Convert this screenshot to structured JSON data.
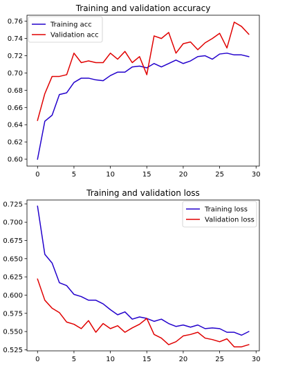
{
  "chart_data": [
    {
      "type": "line",
      "title": "Training and validation accuracy",
      "xlabel": "",
      "ylabel": "",
      "xlim": [
        -1.45,
        30.45
      ],
      "ylim": [
        0.592,
        0.767
      ],
      "xticks": [
        0,
        5,
        10,
        15,
        20,
        25,
        30
      ],
      "yticks": [
        0.6,
        0.62,
        0.64,
        0.66,
        0.68,
        0.7,
        0.72,
        0.74,
        0.76
      ],
      "ytick_decimals": 2,
      "legend_position": "upper-left",
      "grid": false,
      "x": [
        0,
        1,
        2,
        3,
        4,
        5,
        6,
        7,
        8,
        9,
        10,
        11,
        12,
        13,
        14,
        15,
        16,
        17,
        18,
        19,
        20,
        21,
        22,
        23,
        24,
        25,
        26,
        27,
        28,
        29
      ],
      "series": [
        {
          "name": "Training acc",
          "color": "#2200cc",
          "values": [
            0.6,
            0.644,
            0.651,
            0.675,
            0.677,
            0.689,
            0.694,
            0.694,
            0.692,
            0.691,
            0.697,
            0.701,
            0.701,
            0.707,
            0.708,
            0.706,
            0.711,
            0.707,
            0.711,
            0.715,
            0.711,
            0.714,
            0.719,
            0.72,
            0.716,
            0.722,
            0.723,
            0.721,
            0.721,
            0.719
          ]
        },
        {
          "name": "Validation acc",
          "color": "#e00000",
          "values": [
            0.645,
            0.676,
            0.696,
            0.696,
            0.698,
            0.723,
            0.712,
            0.714,
            0.712,
            0.712,
            0.723,
            0.716,
            0.725,
            0.712,
            0.719,
            0.698,
            0.743,
            0.74,
            0.747,
            0.723,
            0.734,
            0.736,
            0.727,
            0.735,
            0.74,
            0.746,
            0.729,
            0.759,
            0.754,
            0.745
          ]
        }
      ]
    },
    {
      "type": "line",
      "title": "Training and validation loss",
      "xlabel": "",
      "ylabel": "",
      "xlim": [
        -1.45,
        30.45
      ],
      "ylim": [
        0.5235,
        0.7305
      ],
      "xticks": [
        0,
        5,
        10,
        15,
        20,
        25,
        30
      ],
      "yticks": [
        0.525,
        0.55,
        0.575,
        0.6,
        0.625,
        0.65,
        0.675,
        0.7,
        0.725
      ],
      "ytick_decimals": 3,
      "legend_position": "upper-right",
      "grid": false,
      "x": [
        0,
        1,
        2,
        3,
        4,
        5,
        6,
        7,
        8,
        9,
        10,
        11,
        12,
        13,
        14,
        15,
        16,
        17,
        18,
        19,
        20,
        21,
        22,
        23,
        24,
        25,
        26,
        27,
        28,
        29
      ],
      "series": [
        {
          "name": "Training loss",
          "color": "#2200cc",
          "values": [
            0.722,
            0.656,
            0.644,
            0.617,
            0.613,
            0.601,
            0.598,
            0.593,
            0.593,
            0.588,
            0.58,
            0.573,
            0.577,
            0.567,
            0.57,
            0.568,
            0.564,
            0.567,
            0.561,
            0.557,
            0.559,
            0.556,
            0.559,
            0.554,
            0.555,
            0.554,
            0.549,
            0.549,
            0.545,
            0.55
          ]
        },
        {
          "name": "Validation loss",
          "color": "#e00000",
          "values": [
            0.622,
            0.593,
            0.582,
            0.576,
            0.563,
            0.56,
            0.554,
            0.565,
            0.549,
            0.561,
            0.554,
            0.558,
            0.549,
            0.555,
            0.56,
            0.568,
            0.546,
            0.541,
            0.532,
            0.536,
            0.544,
            0.546,
            0.549,
            0.541,
            0.539,
            0.536,
            0.54,
            0.529,
            0.529,
            0.532
          ]
        }
      ]
    }
  ]
}
